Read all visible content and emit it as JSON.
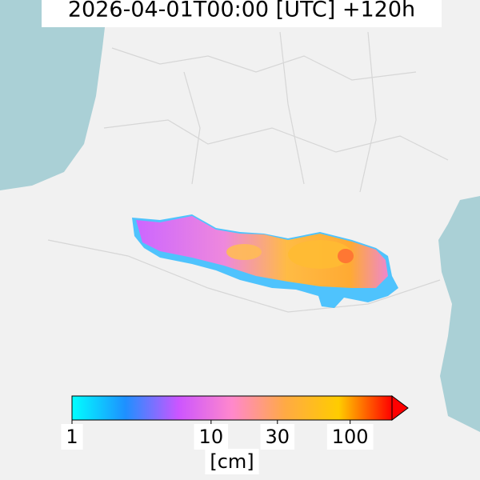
{
  "title": "2026-04-01T00:00 [UTC] +120h",
  "colorbar": {
    "scale": "log",
    "lim": [
      1,
      200
    ],
    "ticks": [
      1,
      10,
      30,
      100
    ],
    "label": "[cm]",
    "colors": [
      "#00ffff",
      "#1e90ff",
      "#cc55ff",
      "#ff88cc",
      "#ffaa44",
      "#ffcc00",
      "#ff0000"
    ]
  }
}
